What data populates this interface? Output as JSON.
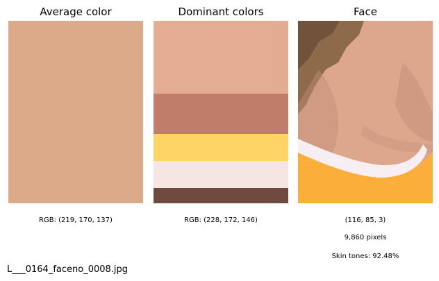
{
  "panels": {
    "average": {
      "title": "Average color",
      "color": "#DBAA89",
      "caption": "RGB: (219, 170, 137)"
    },
    "dominant": {
      "title": "Dominant colors",
      "caption": "RGB: (228, 172, 146)",
      "colors": [
        {
          "color": "#E4AC92",
          "fraction": 0.4
        },
        {
          "color": "#C07D6A",
          "fraction": 0.22
        },
        {
          "color": "#FED466",
          "fraction": 0.15
        },
        {
          "color": "#F5E6E4",
          "fraction": 0.15
        },
        {
          "color": "#6E4A3F",
          "fraction": 0.08
        }
      ]
    },
    "face": {
      "title": "Face",
      "caption_rgb": "(116, 85, 3)",
      "caption_pixels": "9,860 pixels",
      "caption_skin": "Skin tones: 92.48%",
      "colors": {
        "skin": "#DDA78D",
        "skin_shadow": "#C38D78",
        "hair": "#8C6A4A",
        "collar": "#F6EEF2",
        "shirt": "#FBAE3A",
        "background": "#7A6E5A"
      }
    }
  },
  "filename": "L___0164_faceno_0008.jpg"
}
